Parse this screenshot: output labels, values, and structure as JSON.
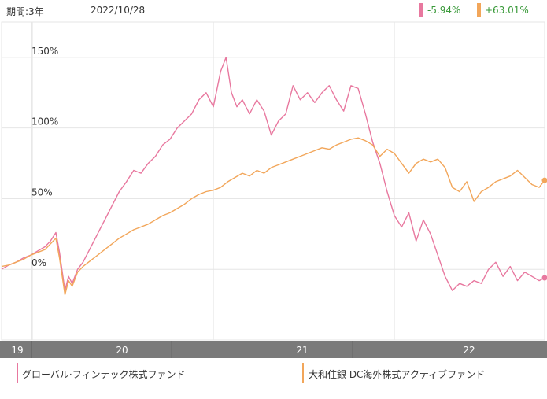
{
  "header": {
    "period": "期間:3年",
    "date": "2022/10/28"
  },
  "returns": [
    {
      "value": "-5.94%",
      "color": "#e8789f"
    },
    {
      "value": "+63.01%",
      "color": "#f2a65a"
    }
  ],
  "legend": [
    {
      "label": "グローバル·フィンテック株式ファンド",
      "color": "#e8789f"
    },
    {
      "label": "大和住銀 DC海外株式アクティブファンド",
      "color": "#f2a65a"
    }
  ],
  "chart_data": {
    "type": "line",
    "ylim": [
      -50,
      175
    ],
    "yticks": [
      0,
      50,
      100,
      150
    ],
    "ytick_labels": [
      "0%",
      "50%",
      "100%",
      "150%"
    ],
    "x_range": [
      2019.83,
      2022.83
    ],
    "xticks": [
      {
        "label": "19",
        "x": 2019.83
      },
      {
        "label": "20",
        "x": 2020.0
      },
      {
        "label": "21",
        "x": 2021.0
      },
      {
        "label": "22",
        "x": 2022.0
      }
    ],
    "grid": true,
    "series": [
      {
        "name": "グローバル·フィンテック株式ファンド",
        "color": "#e8789f",
        "points": [
          [
            2019.83,
            0
          ],
          [
            2019.87,
            3
          ],
          [
            2019.91,
            5
          ],
          [
            2019.95,
            8
          ],
          [
            2019.99,
            10
          ],
          [
            2020.03,
            13
          ],
          [
            2020.07,
            16
          ],
          [
            2020.1,
            20
          ],
          [
            2020.13,
            26
          ],
          [
            2020.15,
            12
          ],
          [
            2020.18,
            -15
          ],
          [
            2020.2,
            -5
          ],
          [
            2020.22,
            -10
          ],
          [
            2020.25,
            0
          ],
          [
            2020.28,
            5
          ],
          [
            2020.32,
            15
          ],
          [
            2020.36,
            25
          ],
          [
            2020.4,
            35
          ],
          [
            2020.44,
            45
          ],
          [
            2020.48,
            55
          ],
          [
            2020.52,
            62
          ],
          [
            2020.56,
            70
          ],
          [
            2020.6,
            68
          ],
          [
            2020.64,
            75
          ],
          [
            2020.68,
            80
          ],
          [
            2020.72,
            88
          ],
          [
            2020.76,
            92
          ],
          [
            2020.8,
            100
          ],
          [
            2020.84,
            105
          ],
          [
            2020.88,
            110
          ],
          [
            2020.92,
            120
          ],
          [
            2020.96,
            125
          ],
          [
            2021.0,
            115
          ],
          [
            2021.04,
            140
          ],
          [
            2021.07,
            150
          ],
          [
            2021.1,
            125
          ],
          [
            2021.13,
            115
          ],
          [
            2021.16,
            120
          ],
          [
            2021.2,
            110
          ],
          [
            2021.24,
            120
          ],
          [
            2021.28,
            112
          ],
          [
            2021.32,
            95
          ],
          [
            2021.36,
            105
          ],
          [
            2021.4,
            110
          ],
          [
            2021.44,
            130
          ],
          [
            2021.48,
            120
          ],
          [
            2021.52,
            125
          ],
          [
            2021.56,
            118
          ],
          [
            2021.6,
            125
          ],
          [
            2021.64,
            130
          ],
          [
            2021.68,
            120
          ],
          [
            2021.72,
            112
          ],
          [
            2021.76,
            130
          ],
          [
            2021.8,
            128
          ],
          [
            2021.84,
            110
          ],
          [
            2021.88,
            90
          ],
          [
            2021.92,
            75
          ],
          [
            2021.96,
            55
          ],
          [
            2022.0,
            38
          ],
          [
            2022.04,
            30
          ],
          [
            2022.08,
            40
          ],
          [
            2022.12,
            20
          ],
          [
            2022.16,
            35
          ],
          [
            2022.2,
            25
          ],
          [
            2022.24,
            10
          ],
          [
            2022.28,
            -5
          ],
          [
            2022.32,
            -15
          ],
          [
            2022.36,
            -10
          ],
          [
            2022.4,
            -12
          ],
          [
            2022.44,
            -8
          ],
          [
            2022.48,
            -10
          ],
          [
            2022.52,
            0
          ],
          [
            2022.56,
            5
          ],
          [
            2022.6,
            -5
          ],
          [
            2022.64,
            2
          ],
          [
            2022.68,
            -8
          ],
          [
            2022.72,
            -2
          ],
          [
            2022.76,
            -5
          ],
          [
            2022.8,
            -8
          ],
          [
            2022.83,
            -6
          ]
        ]
      },
      {
        "name": "大和住銀 DC海外株式アクティブファンド",
        "color": "#f2a65a",
        "points": [
          [
            2019.83,
            2
          ],
          [
            2019.87,
            3
          ],
          [
            2019.91,
            5
          ],
          [
            2019.95,
            7
          ],
          [
            2019.99,
            10
          ],
          [
            2020.03,
            12
          ],
          [
            2020.07,
            14
          ],
          [
            2020.1,
            18
          ],
          [
            2020.13,
            22
          ],
          [
            2020.15,
            8
          ],
          [
            2020.18,
            -18
          ],
          [
            2020.2,
            -8
          ],
          [
            2020.22,
            -12
          ],
          [
            2020.25,
            -2
          ],
          [
            2020.28,
            2
          ],
          [
            2020.32,
            6
          ],
          [
            2020.36,
            10
          ],
          [
            2020.4,
            14
          ],
          [
            2020.44,
            18
          ],
          [
            2020.48,
            22
          ],
          [
            2020.52,
            25
          ],
          [
            2020.56,
            28
          ],
          [
            2020.6,
            30
          ],
          [
            2020.64,
            32
          ],
          [
            2020.68,
            35
          ],
          [
            2020.72,
            38
          ],
          [
            2020.76,
            40
          ],
          [
            2020.8,
            43
          ],
          [
            2020.84,
            46
          ],
          [
            2020.88,
            50
          ],
          [
            2020.92,
            53
          ],
          [
            2020.96,
            55
          ],
          [
            2021.0,
            56
          ],
          [
            2021.04,
            58
          ],
          [
            2021.08,
            62
          ],
          [
            2021.12,
            65
          ],
          [
            2021.16,
            68
          ],
          [
            2021.2,
            66
          ],
          [
            2021.24,
            70
          ],
          [
            2021.28,
            68
          ],
          [
            2021.32,
            72
          ],
          [
            2021.36,
            74
          ],
          [
            2021.4,
            76
          ],
          [
            2021.44,
            78
          ],
          [
            2021.48,
            80
          ],
          [
            2021.52,
            82
          ],
          [
            2021.56,
            84
          ],
          [
            2021.6,
            86
          ],
          [
            2021.64,
            85
          ],
          [
            2021.68,
            88
          ],
          [
            2021.72,
            90
          ],
          [
            2021.76,
            92
          ],
          [
            2021.8,
            93
          ],
          [
            2021.84,
            91
          ],
          [
            2021.88,
            88
          ],
          [
            2021.92,
            80
          ],
          [
            2021.96,
            85
          ],
          [
            2022.0,
            82
          ],
          [
            2022.04,
            75
          ],
          [
            2022.08,
            68
          ],
          [
            2022.12,
            75
          ],
          [
            2022.16,
            78
          ],
          [
            2022.2,
            76
          ],
          [
            2022.24,
            78
          ],
          [
            2022.28,
            72
          ],
          [
            2022.32,
            58
          ],
          [
            2022.36,
            55
          ],
          [
            2022.4,
            62
          ],
          [
            2022.44,
            48
          ],
          [
            2022.48,
            55
          ],
          [
            2022.52,
            58
          ],
          [
            2022.56,
            62
          ],
          [
            2022.6,
            64
          ],
          [
            2022.64,
            66
          ],
          [
            2022.68,
            70
          ],
          [
            2022.72,
            65
          ],
          [
            2022.76,
            60
          ],
          [
            2022.8,
            58
          ],
          [
            2022.83,
            63
          ]
        ]
      }
    ]
  }
}
